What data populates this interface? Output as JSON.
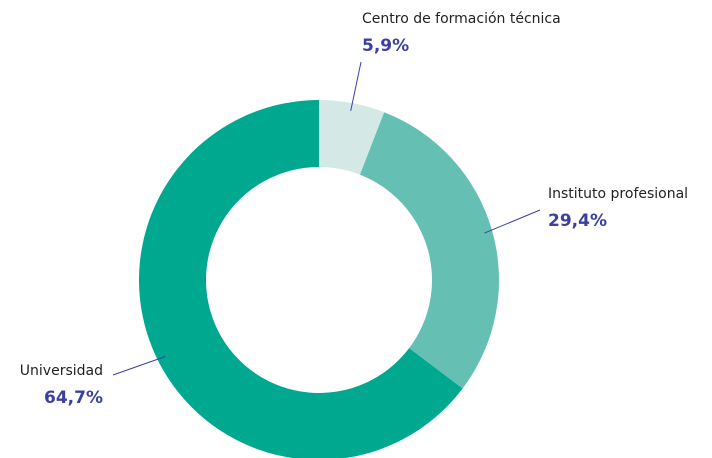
{
  "chart_data": {
    "type": "donut",
    "categories": [
      "Centro de formación técnica",
      "Instituto profesional",
      "Universidad"
    ],
    "values": [
      5.9,
      29.4,
      64.7
    ],
    "value_labels": [
      "5,9%",
      "29,4%",
      "64,7%"
    ],
    "colors": [
      "#d4e9e6",
      "#66bfb3",
      "#00a890"
    ]
  }
}
